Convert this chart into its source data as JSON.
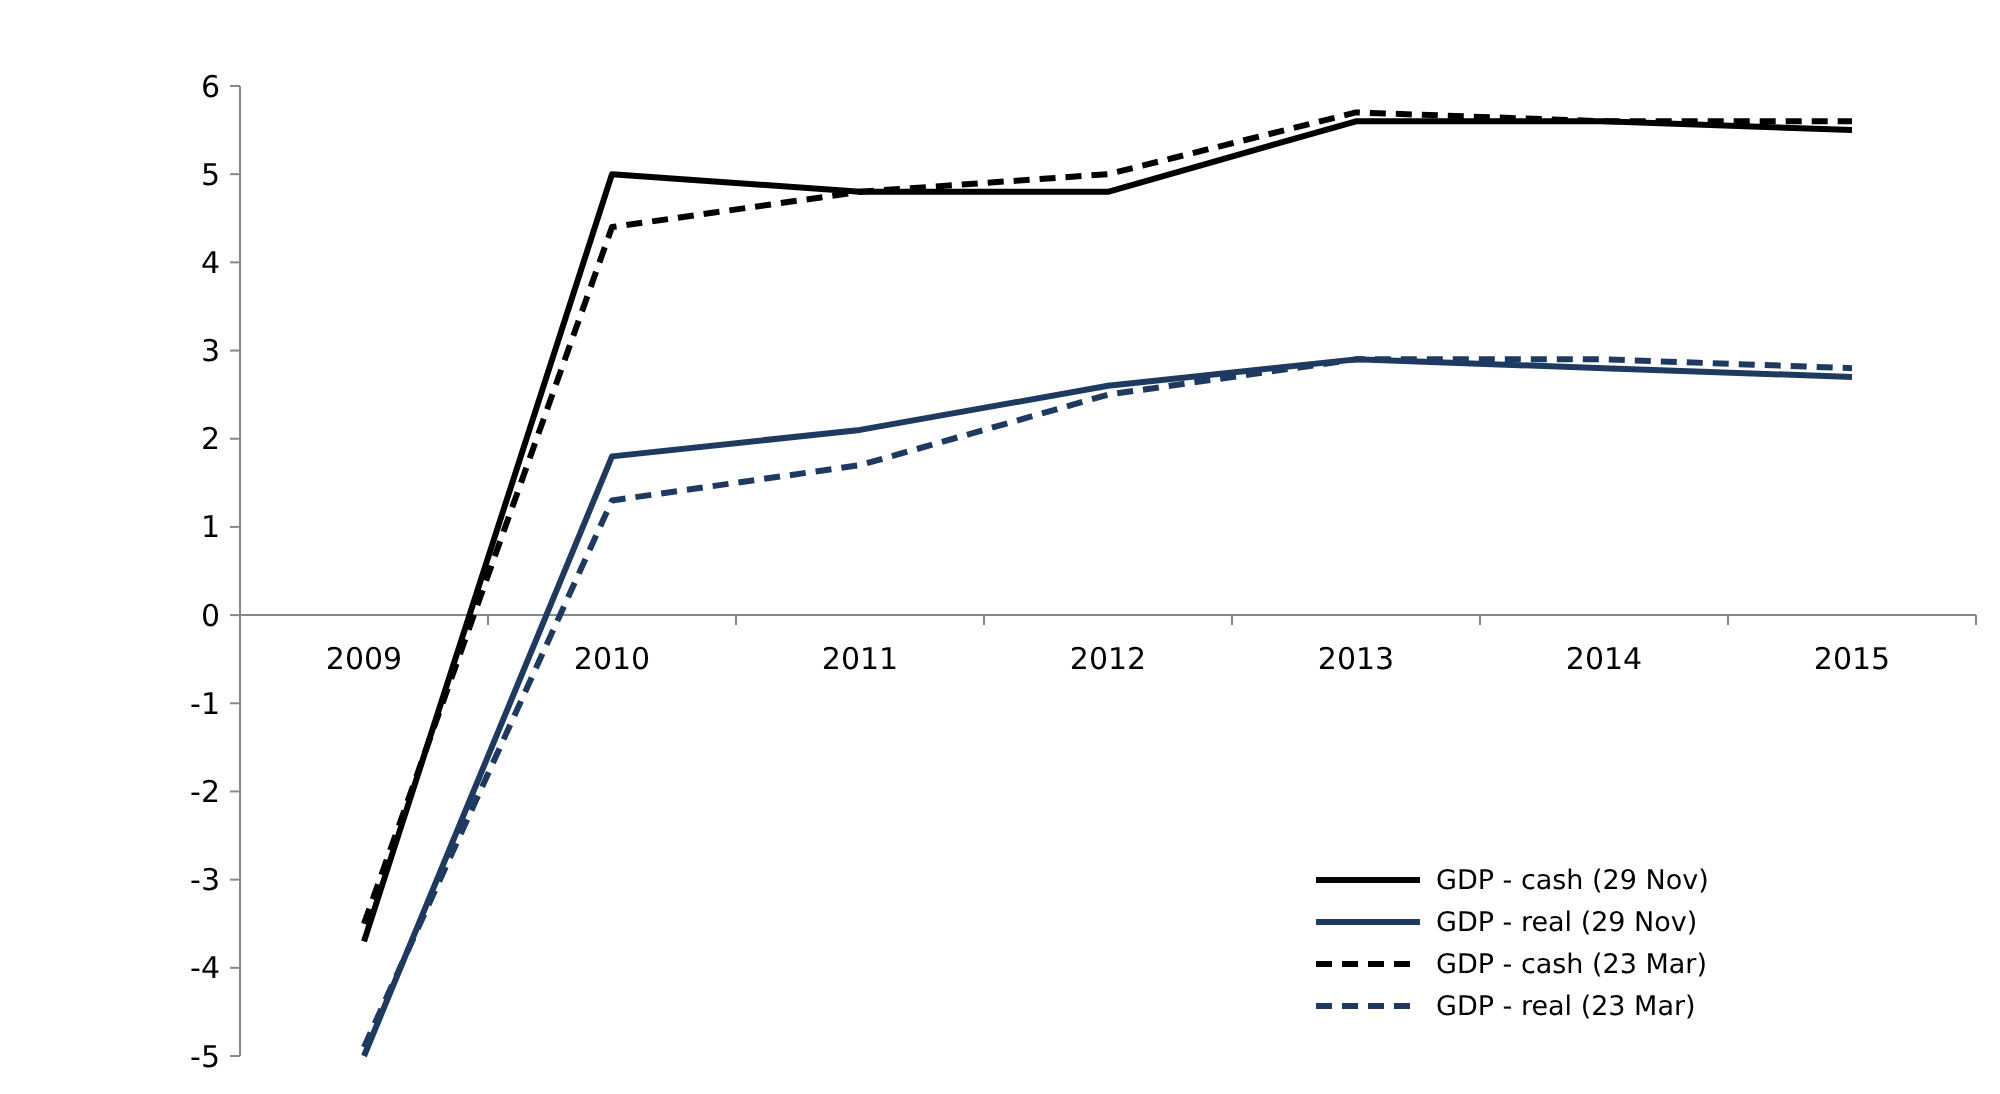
{
  "chart_data": {
    "type": "line",
    "categories": [
      "2009",
      "2010",
      "2011",
      "2012",
      "2013",
      "2014",
      "2015"
    ],
    "series": [
      {
        "name": "GDP - cash (29 Nov)",
        "color": "#000000",
        "line_style": "solid",
        "values": [
          -3.7,
          5.0,
          4.8,
          4.8,
          5.6,
          5.6,
          5.5
        ]
      },
      {
        "name": "GDP - real (29 Nov)",
        "color": "#1f3a60",
        "line_style": "solid",
        "values": [
          -5.0,
          1.8,
          2.1,
          2.6,
          2.9,
          2.8,
          2.7
        ]
      },
      {
        "name": "GDP - cash (23 Mar)",
        "color": "#000000",
        "line_style": "dashed",
        "values": [
          -3.5,
          4.4,
          4.8,
          5.0,
          5.7,
          5.6,
          5.6
        ]
      },
      {
        "name": "GDP - real (23 Mar)",
        "color": "#1f3a60",
        "line_style": "dashed",
        "values": [
          -4.9,
          1.3,
          1.7,
          2.5,
          2.9,
          2.9,
          2.8
        ]
      }
    ],
    "ylim": [
      -5,
      6
    ],
    "yticks": [
      -5,
      -4,
      -3,
      -2,
      -1,
      0,
      1,
      2,
      3,
      4,
      5,
      6
    ],
    "grid": false,
    "legend": "bottom right",
    "marker": "none"
  }
}
